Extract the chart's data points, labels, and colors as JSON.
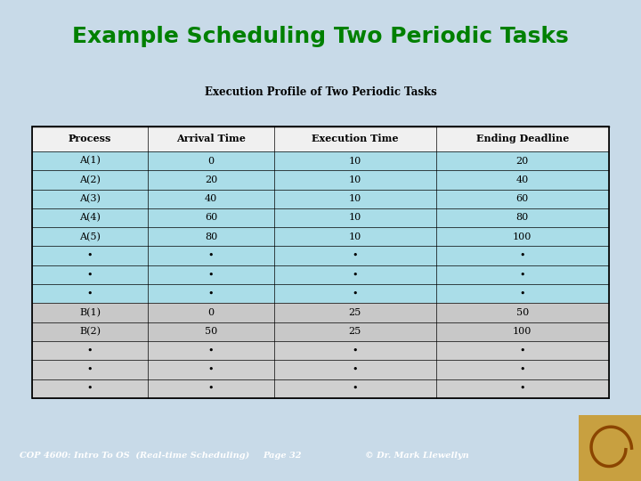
{
  "title": "Example Scheduling Two Periodic Tasks",
  "subtitle": "Execution Profile of Two Periodic Tasks",
  "footer_left": "COP 4600: Intro To OS  (Real-time Scheduling)",
  "footer_center": "Page 32",
  "footer_right": "© Dr. Mark Llewellyn",
  "title_color": "#008000",
  "slide_bg": "#ffffff",
  "outer_bg": "#c8dae8",
  "table_header_bg": "#f0f0f0",
  "row_color_A": "#aadde8",
  "row_color_B": "#c8c8c8",
  "row_color_B_dots": "#d0d0d0",
  "col_headers": [
    "Process",
    "Arrival Time",
    "Execution Time",
    "Ending Deadline"
  ],
  "rows_A": [
    [
      "A(1)",
      "0",
      "10",
      "20"
    ],
    [
      "A(2)",
      "20",
      "10",
      "40"
    ],
    [
      "A(3)",
      "40",
      "10",
      "60"
    ],
    [
      "A(4)",
      "60",
      "10",
      "80"
    ],
    [
      "A(5)",
      "80",
      "10",
      "100"
    ]
  ],
  "dots_A": [
    [
      "•",
      "•",
      "•",
      "•"
    ],
    [
      "•",
      "•",
      "•",
      "•"
    ],
    [
      "•",
      "•",
      "•",
      "•"
    ]
  ],
  "rows_B": [
    [
      "B(1)",
      "0",
      "25",
      "50"
    ],
    [
      "B(2)",
      "50",
      "25",
      "100"
    ]
  ],
  "dots_B": [
    [
      "•",
      "•",
      "•",
      "•"
    ],
    [
      "•",
      "•",
      "•",
      "•"
    ],
    [
      "•",
      "•",
      "•",
      "•"
    ]
  ],
  "footer_bg": "#8090a8",
  "footer_text_color": "#ffffff",
  "title_fontsize": 18,
  "subtitle_fontsize": 8.5,
  "table_header_fontsize": 8,
  "table_data_fontsize": 8,
  "footer_fontsize": 7
}
